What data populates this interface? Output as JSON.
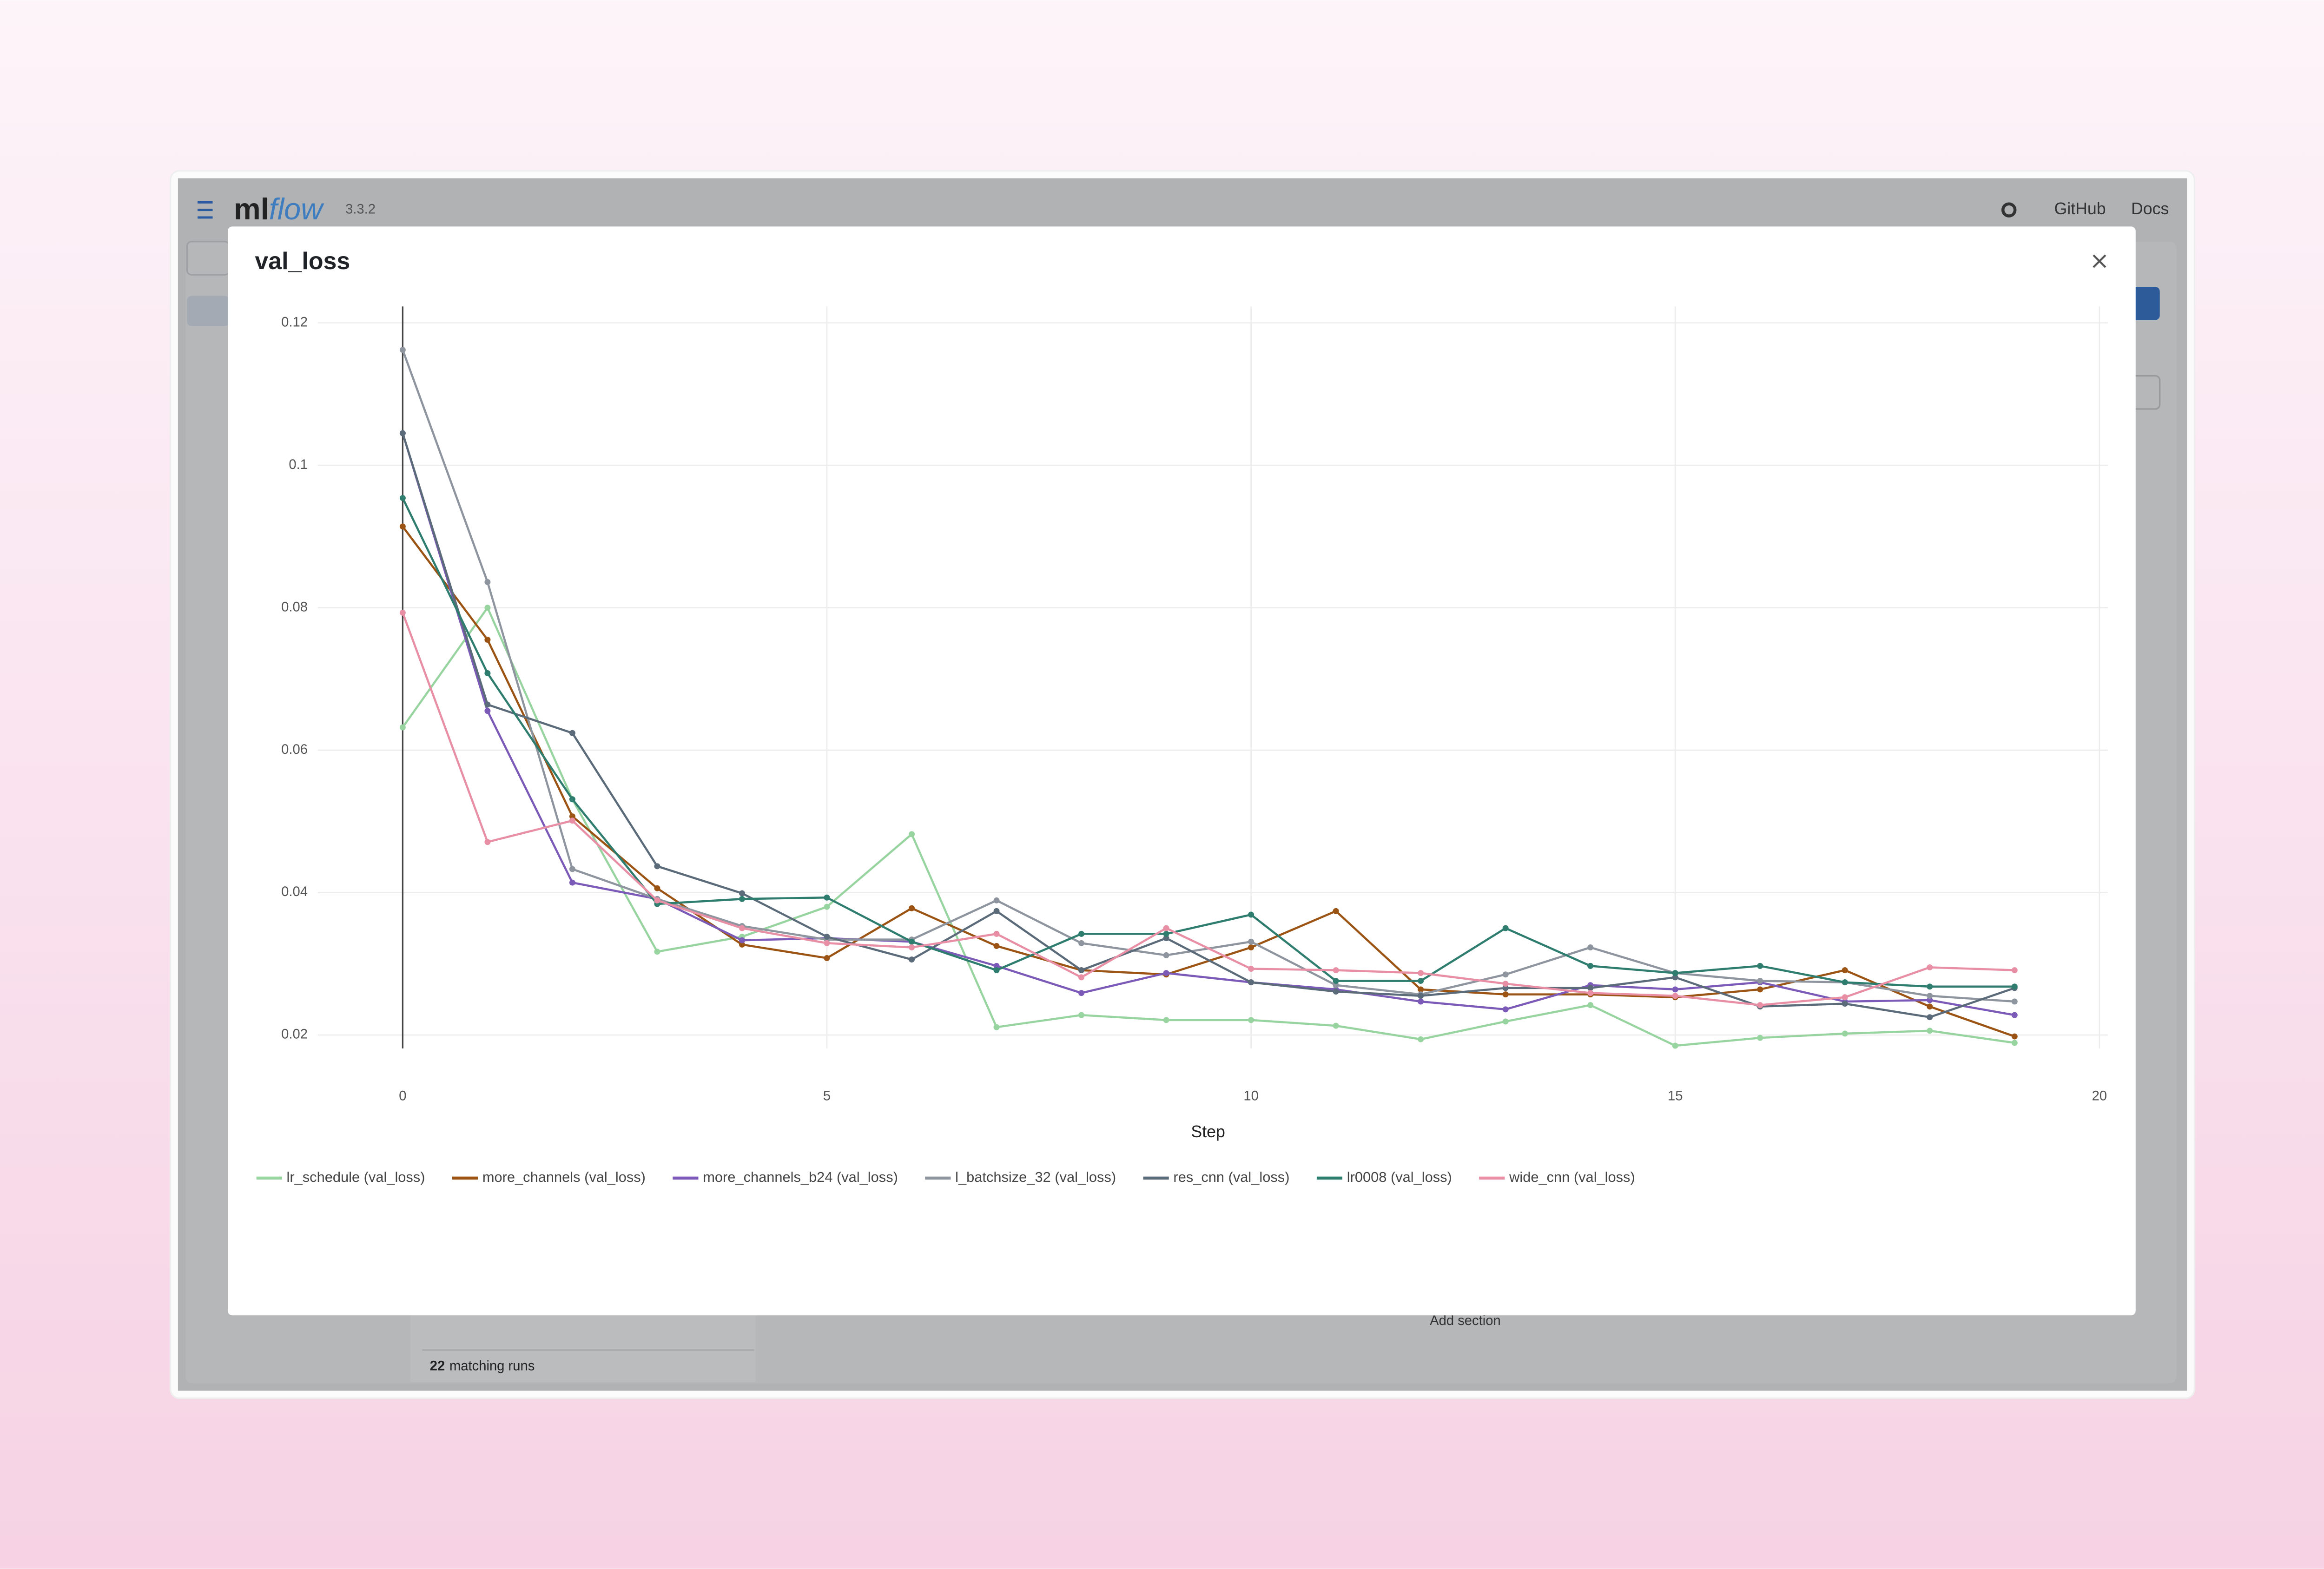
{
  "app": {
    "logo_parts": [
      "ml",
      "flow"
    ],
    "version": "3.3.2",
    "nav": [
      "GitHub",
      "Docs"
    ],
    "runs_count": "22",
    "runs_label": "matching runs",
    "add_section": "Add section"
  },
  "chart_data": {
    "type": "line",
    "title": "val_loss",
    "x_label": "Step",
    "x": [
      0,
      1,
      2,
      3,
      4,
      5,
      6,
      7,
      8,
      9,
      10,
      11,
      12,
      13,
      14,
      15,
      16,
      17,
      18,
      19
    ],
    "xlim": [
      -1,
      20.1
    ],
    "xticks": [
      0,
      5,
      10,
      15,
      20
    ],
    "ylim": [
      0.016,
      0.1223
    ],
    "yticks": [
      0.02,
      0.04,
      0.06,
      0.08,
      0.1,
      0.12
    ],
    "grid": true,
    "legend": "bottom",
    "series": [
      {
        "name": "lr_schedule (val_loss)",
        "color": "#98d4a0",
        "values": [
          0.0632,
          0.08,
          0.0531,
          0.0317,
          0.0338,
          0.038,
          0.0482,
          0.0211,
          0.0228,
          0.0221,
          0.0221,
          0.0213,
          0.0194,
          0.0219,
          0.0242,
          0.0185,
          0.0196,
          0.0202,
          0.0206,
          0.0189
        ]
      },
      {
        "name": "more_channels (val_loss)",
        "color": "#9c5415",
        "values": [
          0.0914,
          0.0755,
          0.0507,
          0.0406,
          0.0327,
          0.0308,
          0.0378,
          0.0325,
          0.0291,
          0.0285,
          0.0323,
          0.0374,
          0.0264,
          0.0257,
          0.0257,
          0.0253,
          0.0264,
          0.0291,
          0.024,
          0.0198
        ]
      },
      {
        "name": "more_channels_b24 (val_loss)",
        "color": "#7b5ab8",
        "values": [
          0.1045,
          0.0655,
          0.0414,
          0.0391,
          0.0333,
          0.0336,
          0.0331,
          0.0297,
          0.0259,
          0.0287,
          0.0274,
          0.0264,
          0.0247,
          0.0236,
          0.027,
          0.0264,
          0.0274,
          0.0247,
          0.0249,
          0.0228
        ]
      },
      {
        "name": "l_batchsize_32 (val_loss)",
        "color": "#8e959e",
        "values": [
          0.1162,
          0.0836,
          0.0433,
          0.0391,
          0.0353,
          0.0334,
          0.0334,
          0.0389,
          0.0329,
          0.0312,
          0.0331,
          0.027,
          0.0257,
          0.0285,
          0.0323,
          0.0287,
          0.0276,
          0.0274,
          0.0255,
          0.0247
        ]
      },
      {
        "name": "res_cnn (val_loss)",
        "color": "#5b6b7a",
        "values": [
          0.1045,
          0.0664,
          0.0624,
          0.0437,
          0.0399,
          0.0338,
          0.0306,
          0.0374,
          0.0291,
          0.0336,
          0.0274,
          0.0261,
          0.0255,
          0.0266,
          0.0266,
          0.0281,
          0.024,
          0.0244,
          0.0225,
          0.0266
        ]
      },
      {
        "name": "lr0008 (val_loss)",
        "color": "#2e7d6e",
        "values": [
          0.0954,
          0.0708,
          0.0531,
          0.0384,
          0.0391,
          0.0393,
          0.0331,
          0.0291,
          0.0342,
          0.0342,
          0.0369,
          0.0276,
          0.0276,
          0.035,
          0.0297,
          0.0287,
          0.0297,
          0.0274,
          0.0268,
          0.0268
        ]
      },
      {
        "name": "wide_cnn (val_loss)",
        "color": "#e88fa5",
        "values": [
          0.0793,
          0.0471,
          0.0501,
          0.0389,
          0.035,
          0.0329,
          0.0323,
          0.0342,
          0.0281,
          0.035,
          0.0293,
          0.0291,
          0.0287,
          0.0272,
          0.0259,
          0.0255,
          0.0242,
          0.0253,
          0.0295,
          0.0291
        ]
      }
    ]
  }
}
